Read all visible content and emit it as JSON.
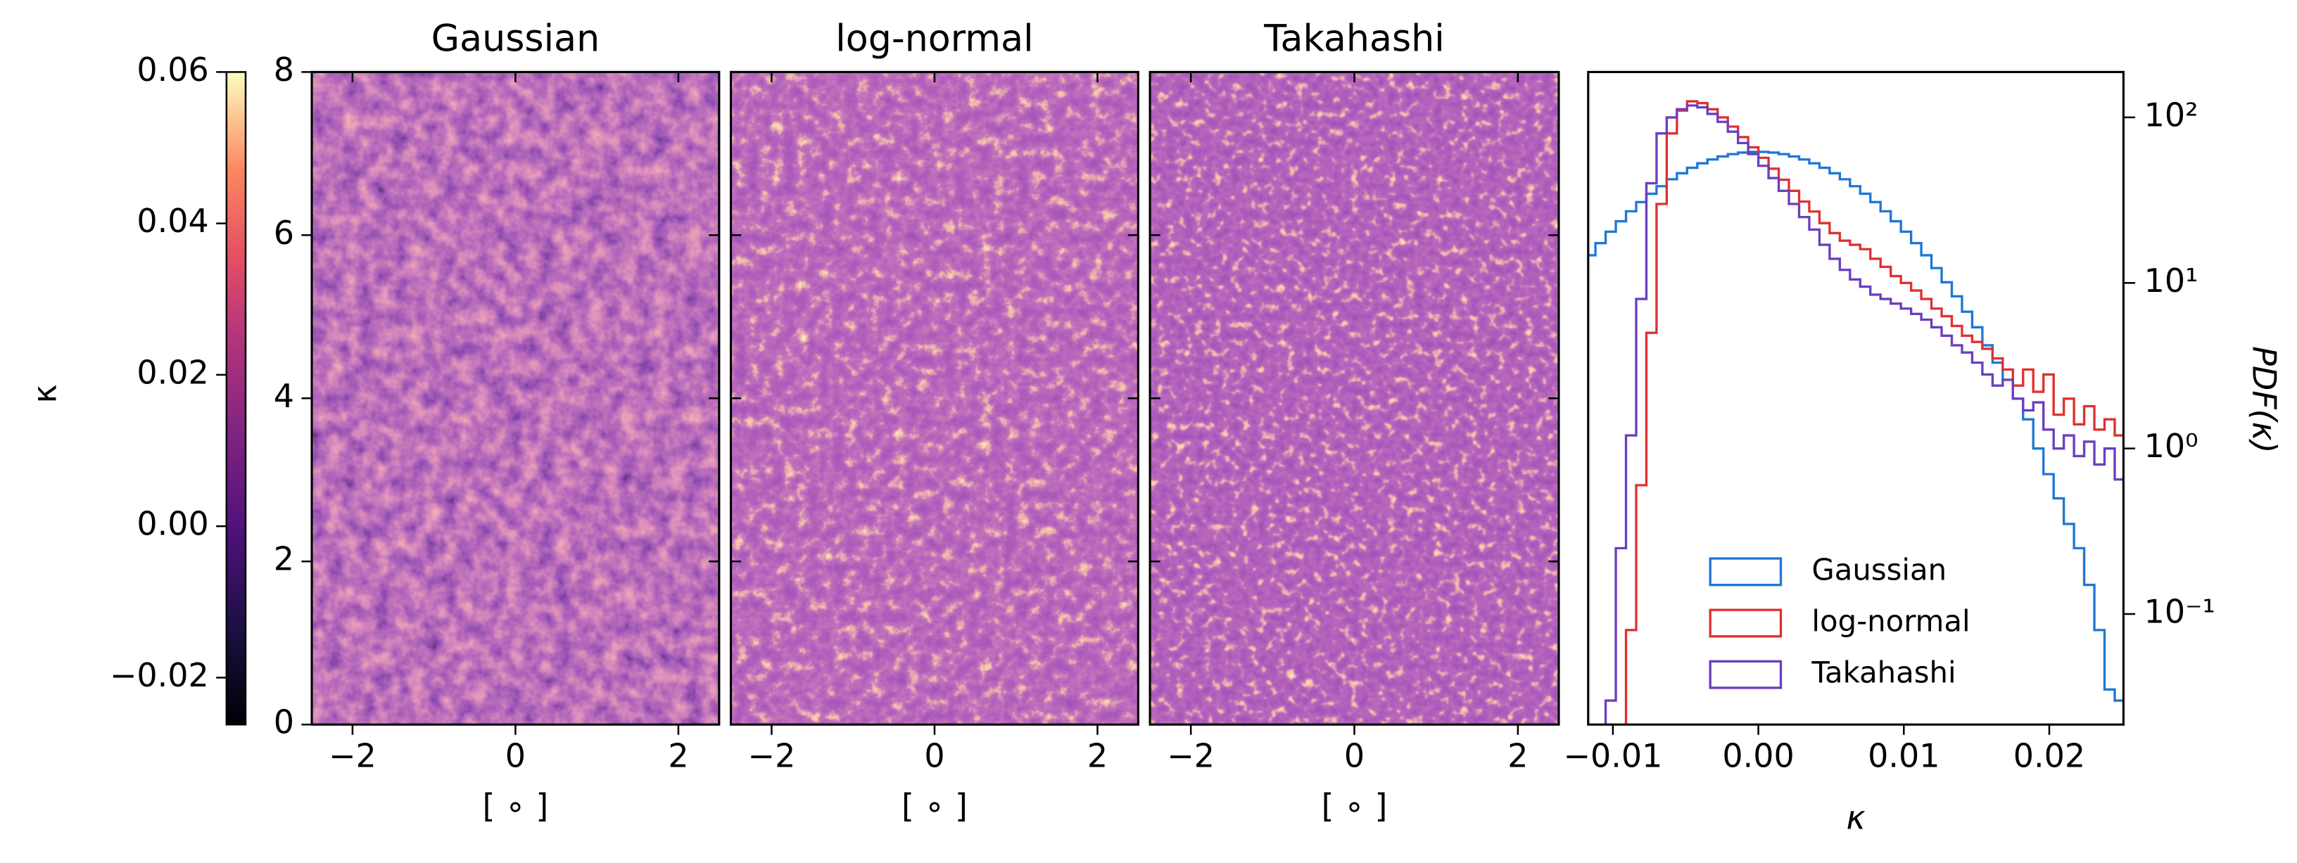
{
  "chart_data": [
    {
      "type": "heatmap",
      "title": "Gaussian",
      "xlabel": "[ ∘ ]",
      "xlim": [
        -2.5,
        2.5
      ],
      "ylim": [
        0,
        8
      ],
      "xticks": [
        {
          "value": -2,
          "label": "−2"
        },
        0,
        2
      ],
      "yticks": [
        0,
        2,
        4,
        6,
        8
      ],
      "colorbar": {
        "label": "κ",
        "colormap": "magma",
        "lim": [
          -0.0262,
          0.06
        ],
        "ticks": [
          {
            "value": -0.02,
            "label": "−0.02"
          },
          {
            "value": 0,
            "label": "0.00"
          },
          {
            "value": 0.02,
            "label": "0.02"
          },
          {
            "value": 0.04,
            "label": "0.04"
          },
          {
            "value": 0.06,
            "label": "0.06"
          }
        ]
      }
    },
    {
      "type": "heatmap",
      "title": "log-normal",
      "xlabel": "[ ∘ ]",
      "xlim": [
        -2.5,
        2.5
      ],
      "ylim": [
        0,
        8
      ],
      "xticks": [
        {
          "value": -2,
          "label": "−2"
        },
        0,
        2
      ]
    },
    {
      "type": "heatmap",
      "title": "Takahashi",
      "xlabel": "[ ∘ ]",
      "xlim": [
        -2.5,
        2.5
      ],
      "ylim": [
        0,
        8
      ],
      "xticks": [
        {
          "value": -2,
          "label": "−2"
        },
        0,
        2
      ]
    },
    {
      "type": "histogram",
      "xlabel": "κ",
      "ylabel": "PDF(κ)",
      "log_y": true,
      "y_axis_side": "right",
      "legend": "lower center",
      "xlim": [
        -0.0117,
        0.0251
      ],
      "ylim": [
        0.0215,
        188
      ],
      "xticks": [
        {
          "value": -0.01,
          "label": "−0.01"
        },
        {
          "value": 0,
          "label": "0.00"
        },
        0.01,
        0.02
      ],
      "yticks": [
        {
          "value": 0.1,
          "label": "10⁻¹"
        },
        {
          "value": 1,
          "label": "10⁰"
        },
        {
          "value": 10,
          "label": "10¹"
        },
        {
          "value": 100,
          "label": "10²"
        }
      ],
      "bins": [
        -0.0119,
        -0.0112,
        -0.0105,
        -0.0098,
        -0.0091,
        -0.0084,
        -0.0077,
        -0.007,
        -0.0063,
        -0.0056,
        -0.0049,
        -0.0042,
        -0.0035,
        -0.0028,
        -0.0021,
        -0.0014,
        -0.0007,
        0,
        0.0007,
        0.0014,
        0.0021,
        0.0028,
        0.0035,
        0.0042,
        0.0049,
        0.0056,
        0.0063,
        0.007,
        0.0077,
        0.0084,
        0.0091,
        0.0098,
        0.0105,
        0.0112,
        0.0119,
        0.0126,
        0.0133,
        0.014,
        0.0147,
        0.0154,
        0.0161,
        0.0168,
        0.0175,
        0.0182,
        0.0189,
        0.0196,
        0.0203,
        0.021,
        0.0217,
        0.0224,
        0.0231,
        0.0238,
        0.0245,
        0.0252
      ],
      "series": [
        {
          "name": "Gaussian",
          "color": "#1f77d4",
          "values": [
            14.7,
            17.4,
            20.4,
            23.6,
            27.1,
            30.8,
            34.6,
            38.4,
            42.3,
            46,
            49.6,
            52.8,
            55.7,
            58.1,
            60,
            61.3,
            61.9,
            61.9,
            61.3,
            60,
            58.1,
            55.7,
            52.8,
            49.6,
            46,
            42.3,
            38.4,
            34.6,
            30.8,
            27.1,
            23.6,
            20.4,
            17.4,
            14.7,
            12.3,
            10.1,
            8.3,
            6.7,
            5.4,
            4.2,
            3.3,
            2.6,
            2,
            1.5,
            1,
            0.7,
            0.5,
            0.35,
            0.25,
            0.15,
            0.08,
            0.035,
            0.03
          ]
        },
        {
          "name": "log-normal",
          "color": "#e03030",
          "values": [
            0,
            0,
            0,
            0.015,
            0.08,
            0.6,
            5,
            30,
            80,
            110,
            125,
            122,
            112,
            100,
            88,
            76,
            66,
            57,
            49,
            42,
            36,
            31,
            27,
            23,
            20,
            18,
            17,
            16,
            14,
            12.5,
            11,
            10,
            9,
            8,
            7,
            6.3,
            5.5,
            4.8,
            4.4,
            4,
            3.5,
            3,
            2.4,
            3,
            2.2,
            2.8,
            1.6,
            2,
            1.4,
            1.8,
            1.3,
            1.5,
            1.2
          ]
        },
        {
          "name": "Takahashi",
          "color": "#6a3fbf",
          "values": [
            0,
            0,
            0.03,
            0.25,
            1.2,
            8,
            40,
            80,
            100,
            112,
            118,
            115,
            105,
            94,
            82,
            70,
            60,
            51,
            43,
            36,
            30,
            25,
            21,
            17,
            14,
            12,
            10.5,
            9.5,
            8.5,
            8,
            7.5,
            7,
            6.5,
            6,
            5.4,
            4.8,
            4.2,
            3.8,
            3.3,
            2.8,
            2.4,
            2.6,
            2,
            1.7,
            1.9,
            1.3,
            1,
            1.2,
            0.9,
            1.1,
            0.8,
            1,
            0.65
          ]
        }
      ]
    }
  ]
}
